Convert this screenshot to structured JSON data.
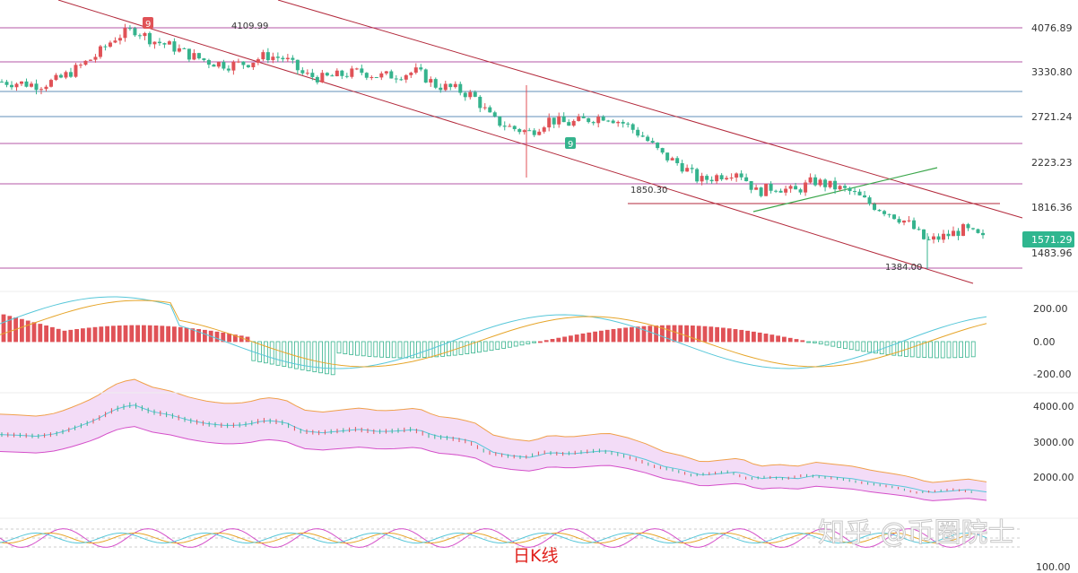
{
  "chart_data": {
    "type": "candlestick",
    "price_axis": {
      "ticks": [
        "4076.89",
        "3330.80",
        "2721.24",
        "2223.23",
        "1816.36",
        "1483.96"
      ],
      "current_price": "1571.29",
      "annotations": {
        "high": "4109.99",
        "low": "1384.00",
        "level": "1850.30"
      }
    },
    "macd_axis": {
      "ticks": [
        "200.00",
        "0.00",
        "-200.00"
      ]
    },
    "boll_axis": {
      "ticks": [
        "4000.00",
        "3000.00",
        "2000.00"
      ]
    },
    "rsi_axis": {
      "ticks": [
        "100.00"
      ]
    },
    "td_markers": [
      "9",
      "9"
    ],
    "colors": {
      "up": "#e05257",
      "down": "#35b38d",
      "current": "#2fb68f",
      "channel": "#b32a3c",
      "trend": "#3aa64a"
    },
    "series_points": {
      "close_path": [
        3200,
        3180,
        3150,
        3230,
        3400,
        3600,
        3900,
        4050,
        3850,
        3750,
        3600,
        3500,
        3450,
        3480,
        3600,
        3550,
        3300,
        3250,
        3300,
        3350,
        3280,
        3300,
        3350,
        3150,
        3100,
        3000,
        2700,
        2600,
        2550,
        2700,
        2650,
        2700,
        2750,
        2650,
        2500,
        2300,
        2200,
        2050,
        2100,
        2150,
        1950,
        2000,
        1950,
        2050,
        2000,
        1950,
        1850,
        1780,
        1700,
        1560,
        1600,
        1650,
        1580
      ]
    }
  },
  "labels": {
    "watermark": "知乎 @币圈院士",
    "bottom_label": "日K线"
  }
}
